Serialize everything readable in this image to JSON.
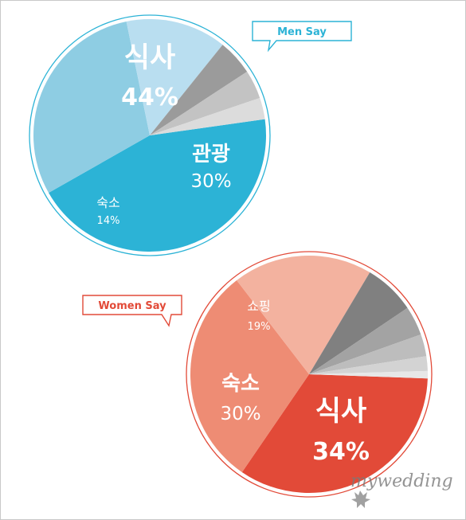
{
  "chart_data": [
    {
      "type": "pie",
      "title": "Men Say",
      "slices": [
        {
          "label": "식사",
          "value": 44,
          "display": "44%",
          "color": "#2cb3d6"
        },
        {
          "label": "관광",
          "value": 30,
          "display": "30%",
          "color": "#8ecde3"
        },
        {
          "label": "숙소",
          "value": 14,
          "display": "14%",
          "color": "#b9def0"
        },
        {
          "label": "",
          "value": 5,
          "color": "#9b9b9b"
        },
        {
          "label": "",
          "value": 4,
          "color": "#c3c3c3"
        },
        {
          "label": "",
          "value": 3,
          "color": "#dcdcdc"
        }
      ]
    },
    {
      "type": "pie",
      "title": "Women Say",
      "slices": [
        {
          "label": "식사",
          "value": 34,
          "display": "34%",
          "color": "#e24a38"
        },
        {
          "label": "숙소",
          "value": 30,
          "display": "30%",
          "color": "#ee8c74"
        },
        {
          "label": "쇼핑",
          "value": 19,
          "display": "19%",
          "color": "#f3b29f"
        },
        {
          "label": "",
          "value": 7,
          "color": "#808080"
        },
        {
          "label": "",
          "value": 4,
          "color": "#a3a3a3"
        },
        {
          "label": "",
          "value": 3,
          "color": "#bdbdbd"
        },
        {
          "label": "",
          "value": 2,
          "color": "#d3d3d3"
        },
        {
          "label": "",
          "value": 1,
          "color": "#e7e7e7"
        }
      ]
    }
  ],
  "watermark": {
    "text": "mywedding"
  }
}
